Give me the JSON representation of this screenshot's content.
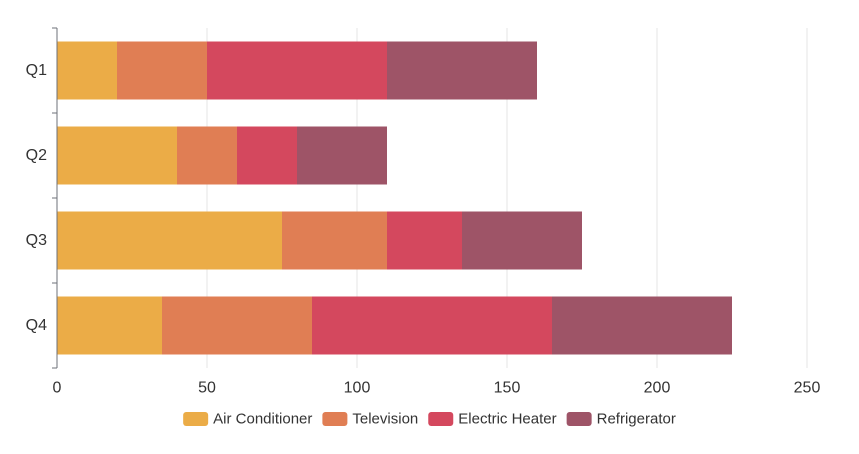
{
  "chart_data": {
    "type": "bar",
    "orientation": "horizontal",
    "stacked": true,
    "title": "",
    "xlabel": "",
    "ylabel": "",
    "categories": [
      "Q1",
      "Q2",
      "Q3",
      "Q4"
    ],
    "series": [
      {
        "name": "Air Conditioner",
        "color": "#ebac47",
        "values": [
          20,
          40,
          75,
          35
        ]
      },
      {
        "name": "Television",
        "color": "#e07e54",
        "values": [
          30,
          20,
          35,
          50
        ]
      },
      {
        "name": "Electric Heater",
        "color": "#d4485e",
        "values": [
          60,
          20,
          25,
          80
        ]
      },
      {
        "name": "Refrigerator",
        "color": "#9e5467",
        "values": [
          50,
          30,
          40,
          60
        ]
      }
    ],
    "xlim": [
      0,
      250
    ],
    "xticks": [
      0,
      50,
      100,
      150,
      200,
      250
    ],
    "grid": "vertical",
    "legend_position": "bottom-center"
  }
}
